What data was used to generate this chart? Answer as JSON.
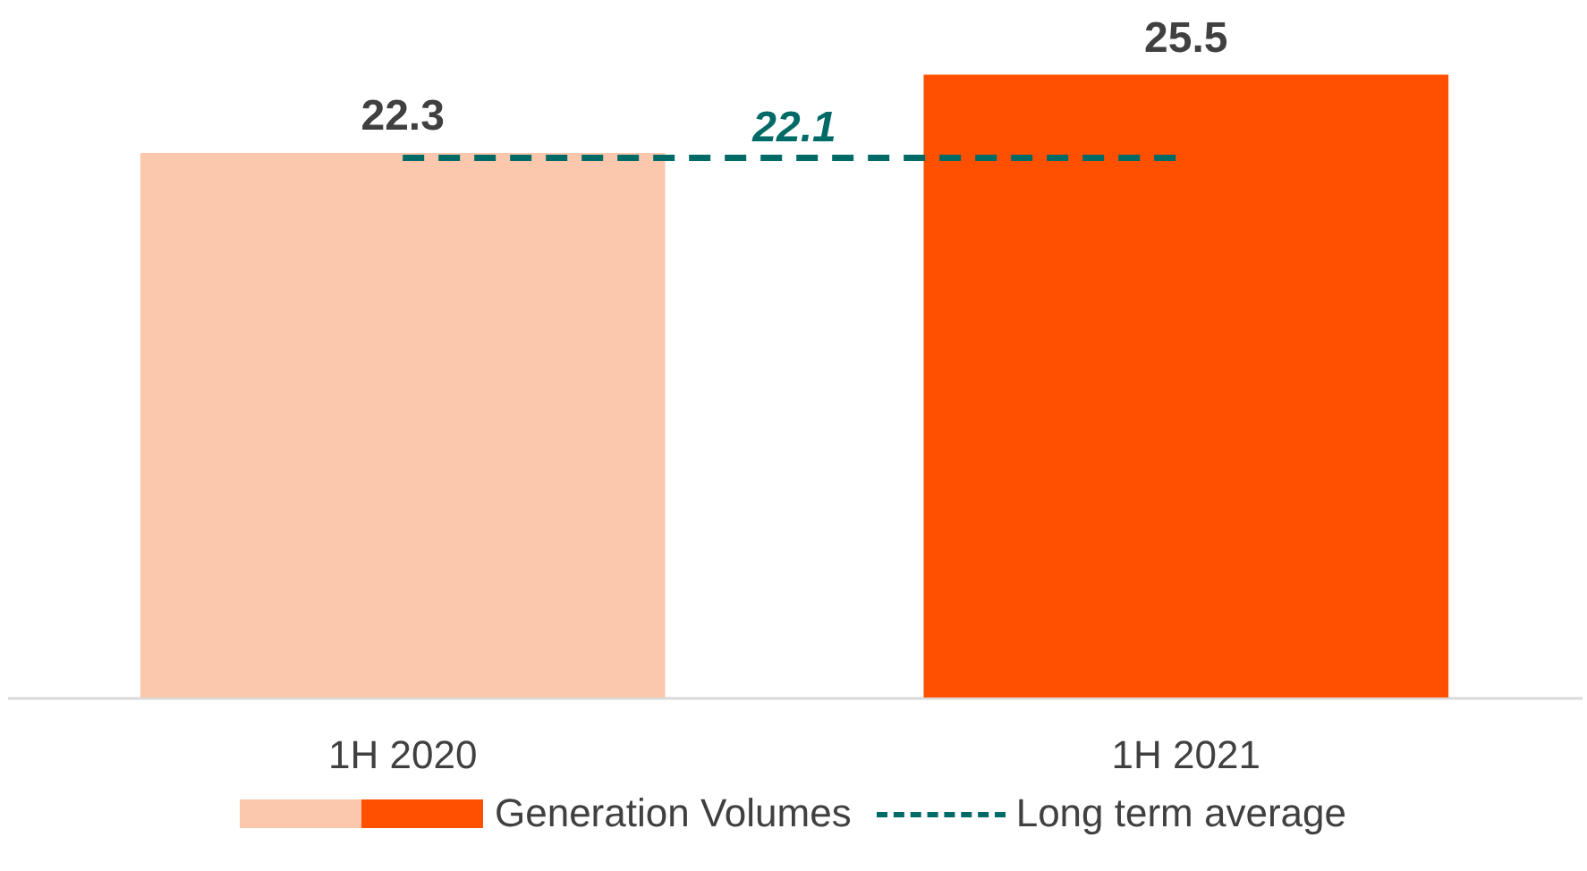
{
  "chart_data": {
    "type": "bar",
    "categories": [
      "1H 2020",
      "1H 2021"
    ],
    "series": [
      {
        "name": "Generation Volumes",
        "values": [
          22.3,
          25.5
        ]
      }
    ],
    "colors": [
      "#fcc8ad",
      "#ff5000"
    ],
    "data_labels": true,
    "ref_lines": [
      {
        "axis": "y",
        "value": 22.1,
        "label": "Long term average",
        "color": "#006a66",
        "line_style": "dashed"
      }
    ],
    "annotations": [
      {
        "text": "22.1",
        "y": 22.1
      }
    ],
    "legend": "bottom"
  }
}
